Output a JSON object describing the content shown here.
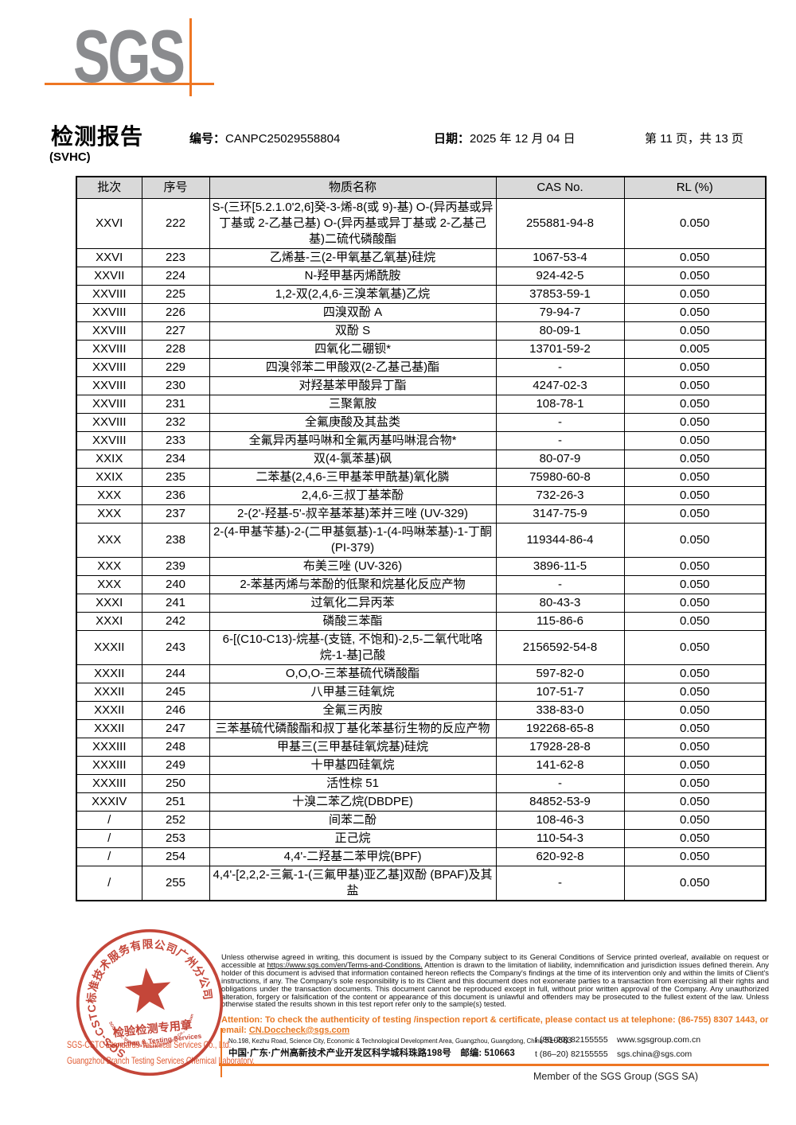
{
  "colors": {
    "sgs_orange": "#ee7623",
    "logo_gray": "#8a8b8e",
    "stamp_red": "#c0392b",
    "company_text_red": "#e0582f",
    "attention_orange": "#e87722",
    "table_header_bg": "#d9d9d9"
  },
  "logo": {
    "text": "SGS"
  },
  "header": {
    "title": "检测报告",
    "subtitle": "(SVHC)",
    "report_no_label": "编号：",
    "report_no": "CANPC25029558804",
    "date_label": "日期：",
    "date": "2025 年 12 月 04 日",
    "page_info": "第 11 页，共 13 页"
  },
  "table": {
    "headers": [
      "批次",
      "序号",
      "物质名称",
      "CAS No.",
      "RL (%)"
    ],
    "rows": [
      {
        "batch": "XXVI",
        "no": "222",
        "name": "S-(三环[5.2.1.0'2,6]癸-3-烯-8(或 9)-基) O-(异丙基或异丁基或 2-乙基己基) O-(异丙基或异丁基或 2-乙基己基)二硫代磷酸酯",
        "cas": "255881-94-8",
        "rl": "0.050"
      },
      {
        "batch": "XXVI",
        "no": "223",
        "name": "乙烯基-三(2-甲氧基乙氧基)硅烷",
        "cas": "1067-53-4",
        "rl": "0.050"
      },
      {
        "batch": "XXVII",
        "no": "224",
        "name": "N-羟甲基丙烯酰胺",
        "cas": "924-42-5",
        "rl": "0.050"
      },
      {
        "batch": "XXVIII",
        "no": "225",
        "name": "1,2-双(2,4,6-三溴苯氧基)乙烷",
        "cas": "37853-59-1",
        "rl": "0.050"
      },
      {
        "batch": "XXVIII",
        "no": "226",
        "name": "四溴双酚 A",
        "cas": "79-94-7",
        "rl": "0.050"
      },
      {
        "batch": "XXVIII",
        "no": "227",
        "name": "双酚 S",
        "cas": "80-09-1",
        "rl": "0.050"
      },
      {
        "batch": "XXVIII",
        "no": "228",
        "name": "四氧化二硼钡*",
        "cas": "13701-59-2",
        "rl": "0.005"
      },
      {
        "batch": "XXVIII",
        "no": "229",
        "name": "四溴邻苯二甲酸双(2-乙基己基)酯",
        "cas": "-",
        "rl": "0.050"
      },
      {
        "batch": "XXVIII",
        "no": "230",
        "name": "对羟基苯甲酸异丁酯",
        "cas": "4247-02-3",
        "rl": "0.050"
      },
      {
        "batch": "XXVIII",
        "no": "231",
        "name": "三聚氰胺",
        "cas": "108-78-1",
        "rl": "0.050"
      },
      {
        "batch": "XXVIII",
        "no": "232",
        "name": "全氟庚酸及其盐类",
        "cas": "-",
        "rl": "0.050"
      },
      {
        "batch": "XXVIII",
        "no": "233",
        "name": "全氟异丙基吗啉和全氟丙基吗啉混合物*",
        "cas": "-",
        "rl": "0.050"
      },
      {
        "batch": "XXIX",
        "no": "234",
        "name": "双(4-氯苯基)砜",
        "cas": "80-07-9",
        "rl": "0.050"
      },
      {
        "batch": "XXIX",
        "no": "235",
        "name": "二苯基(2,4,6-三甲基苯甲酰基)氧化膦",
        "cas": "75980-60-8",
        "rl": "0.050"
      },
      {
        "batch": "XXX",
        "no": "236",
        "name": "2,4,6-三叔丁基苯酚",
        "cas": "732-26-3",
        "rl": "0.050"
      },
      {
        "batch": "XXX",
        "no": "237",
        "name": "2-(2'-羟基-5'-叔辛基苯基)苯并三唑 (UV-329)",
        "cas": "3147-75-9",
        "rl": "0.050"
      },
      {
        "batch": "XXX",
        "no": "238",
        "name": "2-(4-甲基苄基)-2-(二甲基氨基)-1-(4-吗啉苯基)-1-丁酮 (PI-379)",
        "cas": "119344-86-4",
        "rl": "0.050"
      },
      {
        "batch": "XXX",
        "no": "239",
        "name": "布美三唑 (UV-326)",
        "cas": "3896-11-5",
        "rl": "0.050"
      },
      {
        "batch": "XXX",
        "no": "240",
        "name": "2-苯基丙烯与苯酚的低聚和烷基化反应产物",
        "cas": "-",
        "rl": "0.050"
      },
      {
        "batch": "XXXI",
        "no": "241",
        "name": "过氧化二异丙苯",
        "cas": "80-43-3",
        "rl": "0.050"
      },
      {
        "batch": "XXXI",
        "no": "242",
        "name": "磷酸三苯酯",
        "cas": "115-86-6",
        "rl": "0.050"
      },
      {
        "batch": "XXXII",
        "no": "243",
        "name": "6-[(C10-C13)-烷基-(支链, 不饱和)-2,5-二氧代吡咯烷-1-基]己酸",
        "cas": "2156592-54-8",
        "rl": "0.050"
      },
      {
        "batch": "XXXII",
        "no": "244",
        "name": "O,O,O-三苯基硫代磷酸酯",
        "cas": "597-82-0",
        "rl": "0.050"
      },
      {
        "batch": "XXXII",
        "no": "245",
        "name": "八甲基三硅氧烷",
        "cas": "107-51-7",
        "rl": "0.050"
      },
      {
        "batch": "XXXII",
        "no": "246",
        "name": "全氟三丙胺",
        "cas": "338-83-0",
        "rl": "0.050"
      },
      {
        "batch": "XXXII",
        "no": "247",
        "name": "三苯基硫代磷酸酯和叔丁基化苯基衍生物的反应产物",
        "cas": "192268-65-8",
        "rl": "0.050"
      },
      {
        "batch": "XXXIII",
        "no": "248",
        "name": "甲基三(三甲基硅氧烷基)硅烷",
        "cas": "17928-28-8",
        "rl": "0.050"
      },
      {
        "batch": "XXXIII",
        "no": "249",
        "name": "十甲基四硅氧烷",
        "cas": "141-62-8",
        "rl": "0.050"
      },
      {
        "batch": "XXXIII",
        "no": "250",
        "name": "活性棕 51",
        "cas": "-",
        "rl": "0.050"
      },
      {
        "batch": "XXXIV",
        "no": "251",
        "name": "十溴二苯乙烷(DBDPE)",
        "cas": "84852-53-9",
        "rl": "0.050"
      },
      {
        "batch": "/",
        "no": "252",
        "name": "间苯二酚",
        "cas": "108-46-3",
        "rl": "0.050"
      },
      {
        "batch": "/",
        "no": "253",
        "name": "正己烷",
        "cas": "110-54-3",
        "rl": "0.050"
      },
      {
        "batch": "/",
        "no": "254",
        "name": "4,4'-二羟基二苯甲烷(BPF)",
        "cas": "620-92-8",
        "rl": "0.050"
      },
      {
        "batch": "/",
        "no": "255",
        "name": "4,4'-[2,2,2-三氟-1-(三氟甲基)亚乙基]双酚 (BPAF)及其盐",
        "cas": "-",
        "rl": "0.050"
      }
    ]
  },
  "stamp": {
    "ring_text_cn": "SGS-CSTC标准技术服务有限公司广州分公司",
    "ring_text_en": "SGS-CSTC Standards Technical Services Co., Ltd Guangzhou Branch",
    "line1": "检验检测专用章",
    "line2": "Inspection & Testing Services"
  },
  "footer": {
    "company_line1": "SGS-CSTC Standards Technical Services Co., Ltd.",
    "company_line2": "Guangzhou Branch Testing Services Chemical Laboratory.",
    "disclaimer_pre": "Unless otherwise agreed in writing, this document is issued by the Company subject to its General Conditions of Service printed overleaf, available on request or accessible at ",
    "disclaimer_url": "https://www.sgs.com/en/Terms-and-Conditions.",
    "disclaimer_post": " Attention is drawn to the limitation of liability, indemnification and jurisdiction issues defined therein. Any holder of this document is advised that information contained hereon reflects the Company's findings at the time of its intervention only and within the limits of Client's instructions, if any. The Company's sole responsibility is to its Client and this document does not exonerate parties to a transaction from exercising all their rights and obligations under the transaction documents. This document cannot be reproduced except in full, without prior written approval of the Company. Any unauthorized alteration, forgery or falsification of the content or appearance of this document is unlawful and offenders may be prosecuted to the fullest extent of the law. Unless otherwise stated the results shown in this test report refer only to the sample(s) tested.",
    "attention_text": "Attention: To check the authenticity of testing /inspection report & certificate, please contact us at telephone: (86-755) 8307 1443, or email: ",
    "attention_email": "CN.Doccheck@sgs.com",
    "address_en": "No.198, Kezhu Road, Science City, Economic & Technological Development Area, Guangzhou, Guangdong, China ",
    "address_en_zip": "510663",
    "address_cn": "中国·广东·广州高新技术产业开发区科学城科珠路198号　邮编: 510663",
    "tel1": "t (86–20) 82155555",
    "tel2": "t (86–20) 82155555",
    "website": "www.sgsgroup.com.cn",
    "email": "sgs.china@sgs.com",
    "member": "Member of the SGS Group (SGS SA)"
  }
}
